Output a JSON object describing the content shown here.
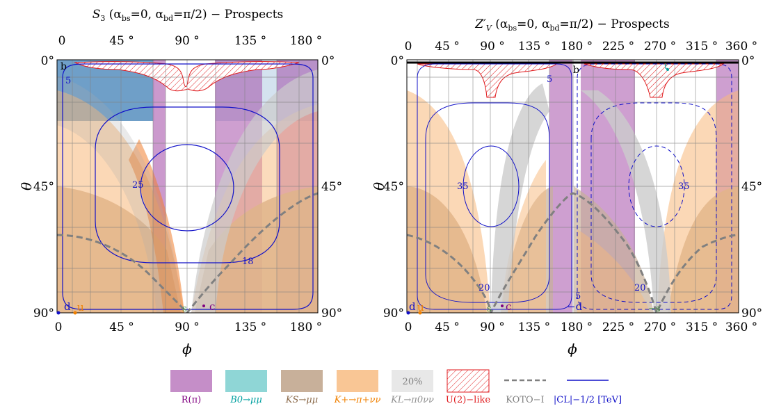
{
  "colors": {
    "r_pi": "#c58ec8",
    "b0_mumu": "#8fd6d6",
    "ks_mumu": "#c8b09a",
    "kplus": "#f8b87a",
    "kl": "#cccccc",
    "u2_like": "#e0191c",
    "koto": "#808080",
    "cl": "#1010c8",
    "blue_region": "#6f9fc8",
    "point_d": "#1010c8",
    "point_u": "#f08000",
    "point_s": "#3c8c3c",
    "point_c": "#800080",
    "point_t": "#00a0a0"
  },
  "chart_data": [
    {
      "type": "area",
      "title": "S3 (αbs=0, αbd=π/2) − Prospects",
      "title_parts": [
        "S",
        "3",
        " (α",
        "bs",
        "=0, α",
        "bd",
        "=π/2) − Prospects"
      ],
      "xlabel": "ϕ",
      "ylabel": "θ",
      "xlim": [
        0,
        180
      ],
      "ylim": [
        0,
        90
      ],
      "y_inverted": true,
      "x_ticks": [
        "0",
        "45 °",
        "90 °",
        "135 °",
        "180 °"
      ],
      "x_tick_values": [
        0,
        45,
        90,
        135,
        180
      ],
      "y_ticks": [
        "0°",
        "45°",
        "90°"
      ],
      "y_tick_values": [
        0,
        45,
        90
      ],
      "grid": true,
      "regions": [
        {
          "name": "Blue band",
          "color_key": "blue_region",
          "phi_range": [
            0,
            180
          ],
          "theta_range": [
            0,
            22
          ]
        },
        {
          "name": "R(π)",
          "color_key": "r_pi",
          "phi_ranges": [
            [
              67,
              76
            ],
            [
              109,
              145
            ],
            [
              152,
              180
            ]
          ]
        },
        {
          "name": "K_S→μμ",
          "phi_range": [
            0,
            180
          ]
        },
        {
          "name": "K+→π+νν",
          "phi_range": [
            0,
            180
          ]
        },
        {
          "name": "K_L→π0νν",
          "phi_range": [
            0,
            180
          ]
        },
        {
          "name": "U(2)−like",
          "phi_range": [
            12,
            168
          ],
          "theta_range": [
            0,
            20
          ]
        }
      ],
      "contours": [
        {
          "label": "5",
          "level_tev": 5
        },
        {
          "label": "25",
          "level_tev": 25
        },
        {
          "label": "18",
          "level_tev": 18
        }
      ],
      "koto_curve": {
        "x": [
          0,
          20,
          40,
          60,
          80,
          90,
          100,
          120,
          140,
          160,
          180
        ],
        "y": [
          60,
          63,
          69,
          77,
          86,
          90,
          84,
          70,
          58,
          50,
          46
        ]
      },
      "points": [
        {
          "label": "b",
          "x": 3,
          "y": 3
        },
        {
          "label": "d",
          "x": 2,
          "y": 90
        },
        {
          "label": "u",
          "x": 15,
          "y": 90
        },
        {
          "label": "s",
          "x": 89,
          "y": 90
        },
        {
          "label": "c",
          "x": 101,
          "y": 89
        }
      ]
    },
    {
      "type": "area",
      "title": "Z′V (αbs=0, αbd=π/2) − Prospects",
      "title_parts": [
        "Z′",
        "V",
        " (α",
        "bs",
        "=0, α",
        "bd",
        "=π/2) − Prospects"
      ],
      "xlabel": "ϕ",
      "ylabel": "θ",
      "xlim": [
        0,
        360
      ],
      "ylim": [
        0,
        90
      ],
      "y_inverted": true,
      "x_ticks": [
        "0",
        "45 °",
        "90 °",
        "135 °",
        "180 °",
        "225 °",
        "270 °",
        "315 °",
        "360 °"
      ],
      "x_tick_values": [
        0,
        45,
        90,
        135,
        180,
        225,
        270,
        315,
        360
      ],
      "y_ticks": [
        "0°",
        "45°",
        "90°"
      ],
      "y_tick_values": [
        0,
        45,
        90
      ],
      "grid": true,
      "regions": [
        {
          "name": "R(π)",
          "color_key": "r_pi",
          "phi_ranges": [
            [
              156,
              180
            ],
            [
              196,
              247
            ],
            [
              346,
              360
            ]
          ]
        },
        {
          "name": "K_S→μμ",
          "phi_range": [
            0,
            360
          ]
        },
        {
          "name": "K+→π+νν",
          "phi_range": [
            0,
            360
          ]
        },
        {
          "name": "K_L→π0νν",
          "phi_range": [
            0,
            360
          ]
        },
        {
          "name": "U(2)−like",
          "phi_ranges": [
            [
              20,
              170
            ],
            [
              200,
              340
            ]
          ],
          "theta_range": [
            0,
            20
          ]
        }
      ],
      "contours": [
        {
          "label": "5",
          "level_tev": 5
        },
        {
          "label": "35",
          "level_tev": 35
        },
        {
          "label": "20",
          "level_tev": 20
        },
        {
          "label": "5",
          "level_tev": 5
        },
        {
          "label": "35",
          "level_tev": 35
        },
        {
          "label": "20",
          "level_tev": 20
        }
      ],
      "koto_curve": {
        "x": [
          0,
          30,
          60,
          90,
          120,
          150,
          180,
          210,
          240,
          270,
          300,
          330,
          360
        ],
        "y": [
          60,
          64,
          76,
          90,
          76,
          59,
          45,
          54,
          70,
          90,
          76,
          63,
          60
        ]
      },
      "points": [
        {
          "label": "b",
          "x": 182,
          "y": 3
        },
        {
          "label": "t",
          "x": 279,
          "y": 3
        },
        {
          "label": "d",
          "x": 2,
          "y": 90
        },
        {
          "label": "u",
          "x": 15,
          "y": 90
        },
        {
          "label": "s",
          "x": 92,
          "y": 90
        },
        {
          "label": "c",
          "x": 104,
          "y": 90
        },
        {
          "label": "−d",
          "x": 182,
          "y": 90
        },
        {
          "label": "−s",
          "x": 272,
          "y": 90
        }
      ]
    }
  ],
  "legend": [
    {
      "label": "R(π)",
      "color_key": "r_pi",
      "kind": "swatch"
    },
    {
      "label": "B0→μμ",
      "color_key": "b0_mumu",
      "kind": "swatch"
    },
    {
      "label": "KS→μμ",
      "color_key": "ks_mumu",
      "kind": "swatch"
    },
    {
      "label": "K+→π+νν",
      "color_key": "kplus",
      "kind": "swatch"
    },
    {
      "label": "KL→π0νν",
      "color_key": "kl",
      "kind": "swatch",
      "swatch_text": "20%"
    },
    {
      "label": "U(2)−like",
      "color_key": "u2_like",
      "kind": "hatch"
    },
    {
      "label": "KOTO−I",
      "color_key": "koto",
      "kind": "dashed"
    },
    {
      "label": "|CL|−1/2 [TeV]",
      "color_key": "cl",
      "kind": "line"
    }
  ]
}
